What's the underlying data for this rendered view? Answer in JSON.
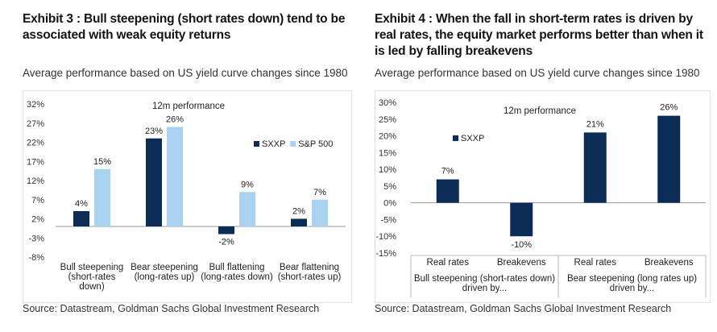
{
  "exhibit3": {
    "title": "Exhibit 3 : Bull steepening (short rates down) tend to be associated with weak equity returns",
    "subtitle": "Average performance based on US yield curve changes since 1980",
    "source": "Source: Datastream, Goldman Sachs Global Investment Research"
  },
  "exhibit4": {
    "title": "Exhibit 4 : When the fall in short-term rates is driven by real rates, the equity market performs better than when it is led by falling breakevens",
    "subtitle": "Average performance based on US yield curve changes since 1980",
    "source": "Source: Datastream, Goldman Sachs Global Investment Research"
  },
  "chart_data": [
    {
      "type": "bar",
      "annotation": "12m performance",
      "categories": [
        [
          "Bull steepening",
          "(short-rates",
          "down)"
        ],
        [
          "Bear steepening",
          "(long-rates up)"
        ],
        [
          "Bull flattening",
          "(long-rates down)"
        ],
        [
          "Bear flattening",
          "(short-rates up)"
        ]
      ],
      "series": [
        {
          "name": "SXXP",
          "values": [
            4,
            23,
            -2,
            2
          ],
          "labels": [
            "4%",
            "23%",
            "-2%",
            "2%"
          ],
          "color": "#0b2d55"
        },
        {
          "name": "S&P 500",
          "values": [
            15,
            26,
            9,
            7
          ],
          "labels": [
            "15%",
            "26%",
            "9%",
            "7%"
          ],
          "color": "#a9d2f0"
        }
      ],
      "ylim": [
        -8,
        32
      ],
      "yticks": [
        -8,
        -3,
        2,
        7,
        12,
        17,
        22,
        27,
        32
      ],
      "ytick_labels": [
        "-8%",
        "-3%",
        "2%",
        "7%",
        "12%",
        "17%",
        "22%",
        "27%",
        "32%"
      ],
      "legend": "center-right",
      "grid": false
    },
    {
      "type": "bar",
      "annotation": "12m performance",
      "categories": [
        "Real rates",
        "Breakevens",
        "Real rates",
        "Breakevens"
      ],
      "groups": [
        {
          "label": [
            "Bull steepening (short-rates down)",
            "driven by..."
          ]
        },
        {
          "label": [
            "Bear steepening (long rates up)",
            "driven by..."
          ]
        }
      ],
      "series": [
        {
          "name": "SXXP",
          "values": [
            7,
            -10,
            21,
            26
          ],
          "labels": [
            "7%",
            "-10%",
            "21%",
            "26%"
          ],
          "color": "#0b2d55"
        }
      ],
      "ylim": [
        -15,
        30
      ],
      "yticks": [
        -15,
        -10,
        -5,
        0,
        5,
        10,
        15,
        20,
        25,
        30
      ],
      "ytick_labels": [
        "-15%",
        "-10%",
        "-5%",
        "0%",
        "5%",
        "10%",
        "15%",
        "20%",
        "25%",
        "30%"
      ],
      "legend": "upper-left",
      "grid": false
    }
  ]
}
